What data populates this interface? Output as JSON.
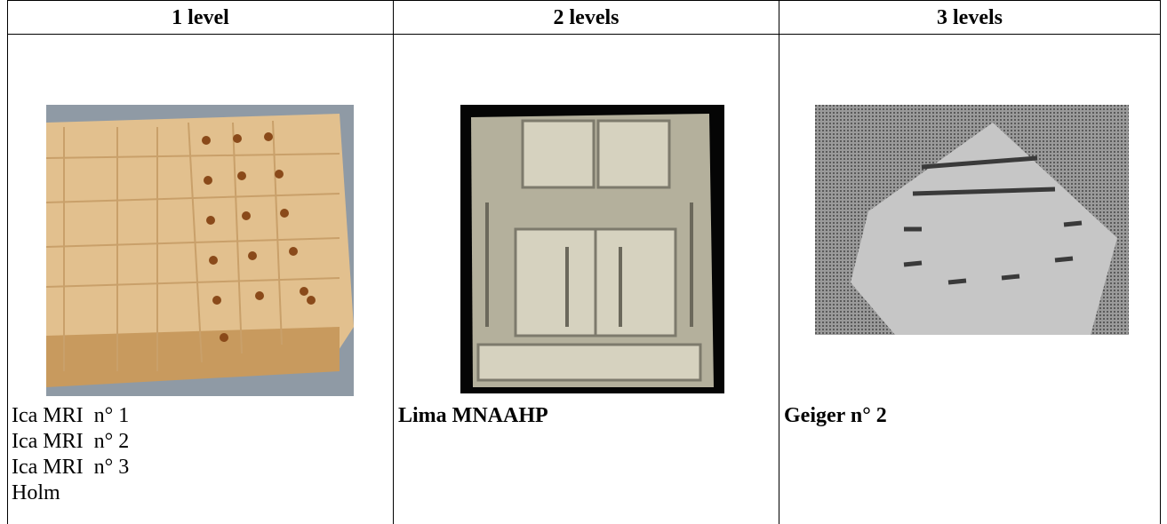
{
  "table": {
    "headers": [
      "1 level",
      "2 levels",
      "3 levels"
    ],
    "cells": [
      {
        "lines": [
          "Ica MRI  n° 1",
          "Ica MRI  n° 2",
          "Ica MRI  n° 3",
          "Holm"
        ],
        "bold": false
      },
      {
        "lines": [
          "Lima MNAAHP"
        ],
        "bold": true
      },
      {
        "lines": [
          "Geiger n° 2"
        ],
        "bold": true
      }
    ]
  }
}
